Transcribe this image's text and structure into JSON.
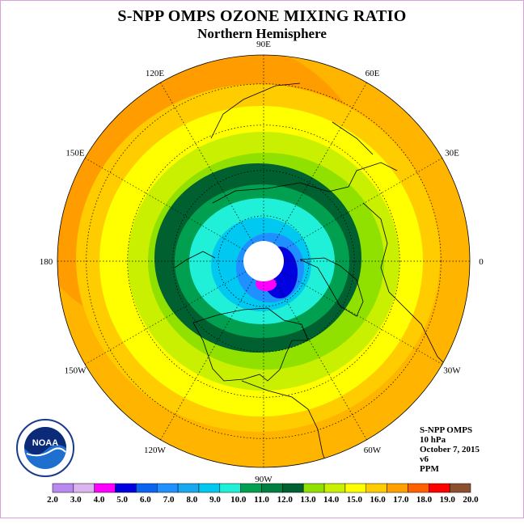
{
  "header": {
    "title": "S-NPP OMPS OZONE MIXING RATIO",
    "subtitle": "Northern Hemisphere"
  },
  "map": {
    "projection": "north-polar-stereographic",
    "longitude_labels": [
      "90E",
      "60E",
      "30E",
      "0",
      "30W",
      "60W",
      "90W",
      "120W",
      "150W",
      "180",
      "150E",
      "120E"
    ],
    "longitude_values": [
      90,
      60,
      30,
      0,
      -30,
      -60,
      -90,
      -120,
      -150,
      180,
      150,
      120
    ]
  },
  "info": {
    "instrument": "S-NPP OMPS",
    "level": "10 hPa",
    "date": "October 7, 2015",
    "version": "v6",
    "units": "PPM"
  },
  "logo": {
    "text": "NOAA",
    "icon": "noaa-logo-icon"
  },
  "colorbar": {
    "ticks": [
      "2.0",
      "3.0",
      "4.0",
      "5.0",
      "6.0",
      "7.0",
      "8.0",
      "9.0",
      "10.0",
      "11.0",
      "12.0",
      "13.0",
      "14.0",
      "15.0",
      "16.0",
      "17.0",
      "18.0",
      "19.0",
      "20.0"
    ],
    "colors": [
      "#b988f0",
      "#dcb4f0",
      "#ff00ff",
      "#0000e0",
      "#0a64f0",
      "#1e90ff",
      "#18a8f0",
      "#00c8f0",
      "#20f0d8",
      "#00a050",
      "#008040",
      "#006030",
      "#90e000",
      "#c8f000",
      "#ffff00",
      "#ffcc00",
      "#ffa000",
      "#ff6000",
      "#ff0000",
      "#8b5030"
    ]
  },
  "contour_levels_ppm": [
    {
      "value": 20.0,
      "color": "#ff9c00"
    },
    {
      "value": 16.0,
      "color": "#ffb400"
    },
    {
      "value": 15.0,
      "color": "#ffcc00"
    },
    {
      "value": 14.0,
      "color": "#ffff00"
    },
    {
      "value": 13.0,
      "color": "#c8f000"
    },
    {
      "value": 12.0,
      "color": "#90e000"
    },
    {
      "value": 11.0,
      "color": "#008040"
    },
    {
      "value": 10.0,
      "color": "#00a050"
    },
    {
      "value": 9.0,
      "color": "#20f0d8"
    },
    {
      "value": 8.0,
      "color": "#00c8f0"
    },
    {
      "value": 7.0,
      "color": "#18a8f0"
    },
    {
      "value": 6.0,
      "color": "#1e90ff"
    }
  ]
}
